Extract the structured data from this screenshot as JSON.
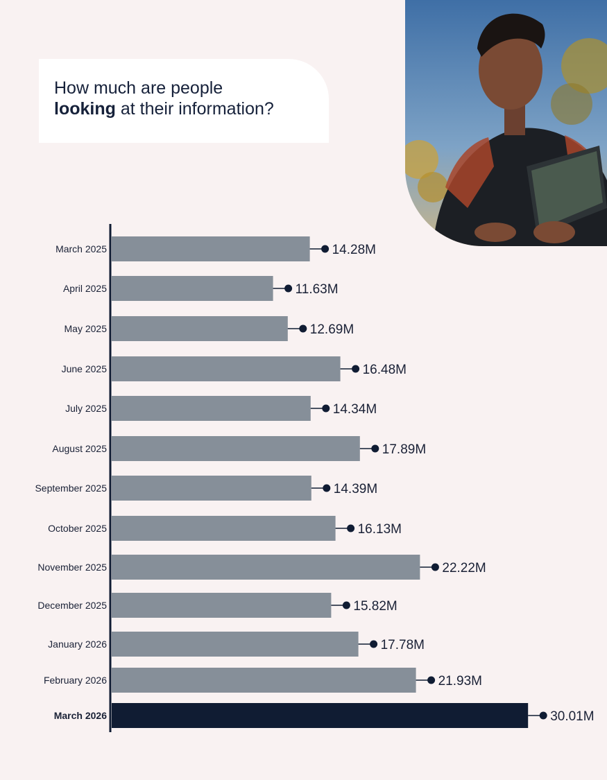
{
  "header": {
    "title_line1": "How much are people",
    "title_bold": "looking",
    "title_rest": " at their information?"
  },
  "photo": {
    "subject": "person-with-tablet"
  },
  "colors": {
    "background": "#f9f2f2",
    "bar": "#868f99",
    "bar_highlight": "#101c33",
    "marker": "#101c33",
    "text": "#1a2136"
  },
  "chart_data": {
    "type": "bar",
    "orientation": "horizontal",
    "categories": [
      "March 2025",
      "April 2025",
      "May 2025",
      "June 2025",
      "July 2025",
      "August 2025",
      "September 2025",
      "October 2025",
      "November 2025",
      "December 2025",
      "January 2026",
      "February 2026",
      "March 2026"
    ],
    "values": [
      14.28,
      11.63,
      12.69,
      16.48,
      14.34,
      17.89,
      14.39,
      16.13,
      22.22,
      15.82,
      17.78,
      21.93,
      30.01
    ],
    "value_labels": [
      "14.28M",
      "11.63M",
      "12.69M",
      "16.48M",
      "14.34M",
      "17.89M",
      "14.39M",
      "16.13M",
      "22.22M",
      "15.82M",
      "17.78M",
      "21.93M",
      "30.01M"
    ],
    "highlight_index": 12,
    "xlim": [
      0,
      32
    ],
    "grid": false
  }
}
